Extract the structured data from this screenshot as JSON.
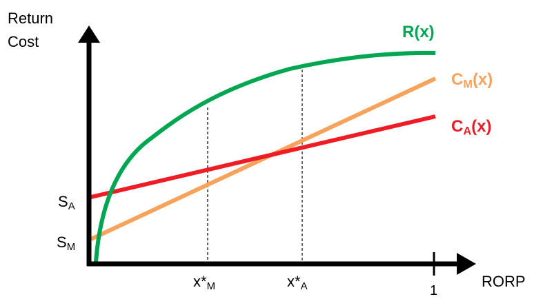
{
  "axes": {
    "y_title_line1": "Return",
    "y_title_line2": "Cost",
    "x_title": "RORP",
    "x_tick_one": "1"
  },
  "y_ticks": {
    "sa_base": "S",
    "sa_sub": "A",
    "sm_base": "S",
    "sm_sub": "M"
  },
  "x_ticks": {
    "xm_base": "x*",
    "xm_sub": "M",
    "xa_base": "x*",
    "xa_sub": "A"
  },
  "curves": {
    "r_label": "R(x)",
    "cm_base": "C",
    "cm_sub": "M",
    "cm_tail": "(x)",
    "ca_base": "C",
    "ca_sub": "A",
    "ca_tail": "(x)"
  },
  "colors": {
    "return_curve": "#00a651",
    "cost_m": "#f7a35c",
    "cost_a": "#ee1c25",
    "axis": "#000000"
  }
}
